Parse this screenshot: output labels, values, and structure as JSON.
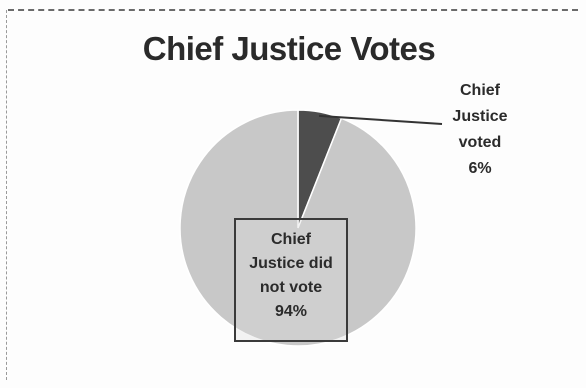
{
  "chart_data": {
    "type": "pie",
    "title": "Chief Justice Votes",
    "slices": [
      {
        "label_lines": [
          "Chief",
          "Justice",
          "voted"
        ],
        "value": 6,
        "value_label": "6%",
        "color": "#4d4d4d"
      },
      {
        "label_lines": [
          "Chief",
          "Justice did",
          "not vote"
        ],
        "value": 94,
        "value_label": "94%",
        "color": "#c8c8c8"
      }
    ],
    "legend": "none"
  }
}
